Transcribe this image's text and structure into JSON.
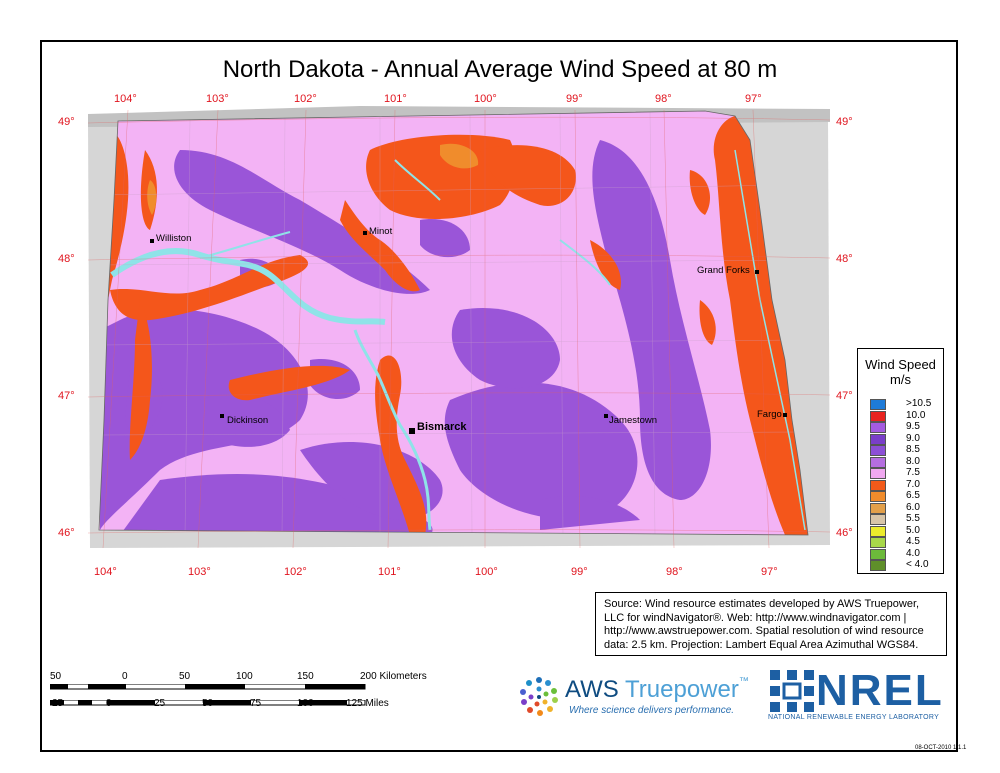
{
  "title": "North Dakota - Annual Average Wind Speed at 80 m",
  "longitude_labels": [
    "104°",
    "103°",
    "102°",
    "101°",
    "100°",
    "99°",
    "98°",
    "97°"
  ],
  "latitude_labels": [
    "49°",
    "48°",
    "47°",
    "46°"
  ],
  "cities": [
    {
      "name": "Williston",
      "bold": false
    },
    {
      "name": "Minot",
      "bold": false
    },
    {
      "name": "Grand Forks",
      "bold": false
    },
    {
      "name": "Dickinson",
      "bold": false
    },
    {
      "name": "Bismarck",
      "bold": true
    },
    {
      "name": "Jamestown",
      "bold": false
    },
    {
      "name": "Fargo",
      "bold": false
    }
  ],
  "legend": {
    "title_line1": "Wind Speed",
    "title_line2": "m/s",
    "items": [
      {
        "label": ">10.5",
        "color": "#1e7bd8"
      },
      {
        "label": "10.0",
        "color": "#e8231f"
      },
      {
        "label": "9.5",
        "color": "#a45be0"
      },
      {
        "label": "9.0",
        "color": "#7a3ec9"
      },
      {
        "label": "8.5",
        "color": "#8c4fd6"
      },
      {
        "label": "8.0",
        "color": "#b56ee0"
      },
      {
        "label": "7.5",
        "color": "#f0a8f0"
      },
      {
        "label": "7.0",
        "color": "#f25a1a"
      },
      {
        "label": "6.5",
        "color": "#f08c2c"
      },
      {
        "label": "6.0",
        "color": "#e3a04a"
      },
      {
        "label": "5.5",
        "color": "#d8c5a8"
      },
      {
        "label": "5.0",
        "color": "#ecec2c"
      },
      {
        "label": "4.5",
        "color": "#a8d84a"
      },
      {
        "label": "4.0",
        "color": "#6cba3a"
      },
      {
        "label": "< 4.0",
        "color": "#5f8f2a"
      }
    ]
  },
  "source_text": "Source: Wind resource estimates developed by AWS Truepower, LLC for windNavigator®. Web: http://www.windnavigator.com | http://www.awstruepower.com. Spatial resolution of wind resource data: 2.5 km. Projection: Lambert Equal Area Azimuthal WGS84.",
  "scale": {
    "km_labels": [
      "50",
      "0",
      "50",
      "100",
      "150",
      "200 Kilometers"
    ],
    "mile_labels": [
      "25",
      "0",
      "25",
      "50",
      "75",
      "100",
      "125 Miles"
    ]
  },
  "logos": {
    "aws_name_dark": "AWS",
    "aws_name_light": "Truepower",
    "aws_tm": "™",
    "aws_tagline": "Where science delivers performance.",
    "nrel_name": "NREL",
    "nrel_subtitle": "NATIONAL RENEWABLE ENERGY LABORATORY"
  },
  "datestamp": "08-OCT-2010 1.1.1",
  "colors": {
    "lat_lon_label": "#e0141e",
    "map_base": "#f3b3f5",
    "higher_wind": "#9a55d8",
    "lower_wind": "#f4561b",
    "water": "#8fe3e8",
    "outside_state": "#d6d6d6"
  }
}
